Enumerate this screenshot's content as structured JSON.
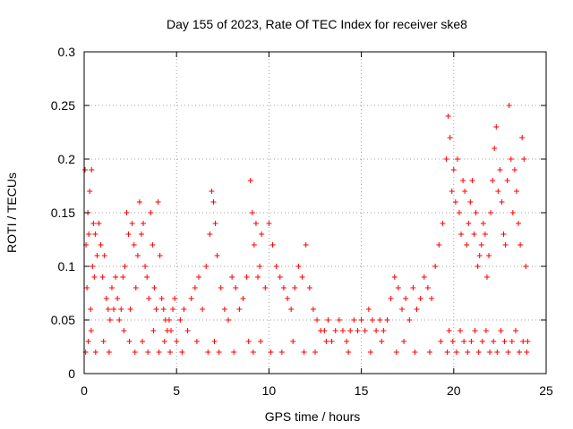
{
  "chart_data": {
    "type": "scatter",
    "title": "Day 155 of 2023, Rate Of TEC Index for receiver ske8",
    "xlabel": "GPS time / hours",
    "ylabel": "ROTI / TECUs",
    "xlim": [
      0,
      25
    ],
    "ylim": [
      0,
      0.3
    ],
    "xticks": [
      0,
      5,
      10,
      15,
      20,
      25
    ],
    "xtick_labels": [
      "0",
      "5",
      "10",
      "15",
      "20",
      "25"
    ],
    "yticks": [
      0,
      0.05,
      0.1,
      0.15,
      0.2,
      0.25,
      0.3
    ],
    "ytick_labels": [
      "0",
      "0.05",
      "0.1",
      "0.15",
      "0.2",
      "0.25",
      "0.3"
    ],
    "grid": true,
    "marker": "+",
    "series": [
      {
        "name": "ROTI",
        "color": "#ff0000",
        "x": [
          0.05,
          0.1,
          0.15,
          0.2,
          0.25,
          0.3,
          0.35,
          0.4,
          0.45,
          0.5,
          0.55,
          0.6,
          0.7,
          0.8,
          0.9,
          1.0,
          1.1,
          1.2,
          1.3,
          1.4,
          1.5,
          1.6,
          1.7,
          1.8,
          1.9,
          2.0,
          2.1,
          2.2,
          2.3,
          2.4,
          2.5,
          2.6,
          2.7,
          2.8,
          2.9,
          3.0,
          3.1,
          3.2,
          3.3,
          3.4,
          3.5,
          3.6,
          3.7,
          3.8,
          3.9,
          4.0,
          4.1,
          4.2,
          4.3,
          4.4,
          4.5,
          4.6,
          4.7,
          4.8,
          4.9,
          5.0,
          5.2,
          5.4,
          5.6,
          5.8,
          6.0,
          6.2,
          6.4,
          6.6,
          6.8,
          6.9,
          7.0,
          7.1,
          7.2,
          7.4,
          7.6,
          7.8,
          8.0,
          8.2,
          8.4,
          8.6,
          8.8,
          9.0,
          9.1,
          9.2,
          9.3,
          9.4,
          9.5,
          9.6,
          9.8,
          10.0,
          10.2,
          10.4,
          10.6,
          10.8,
          11.0,
          11.2,
          11.4,
          11.6,
          11.8,
          12.0,
          12.2,
          12.4,
          12.6,
          12.8,
          13.0,
          13.2,
          13.4,
          13.6,
          13.8,
          14.0,
          14.2,
          14.4,
          14.6,
          14.8,
          15.0,
          15.2,
          15.4,
          15.6,
          15.8,
          16.0,
          16.2,
          16.4,
          16.6,
          16.8,
          17.0,
          17.2,
          17.4,
          17.6,
          17.8,
          18.0,
          18.2,
          18.4,
          18.6,
          18.8,
          19.0,
          19.2,
          19.4,
          19.6,
          19.7,
          19.8,
          19.9,
          20.0,
          20.1,
          20.2,
          20.3,
          20.4,
          20.5,
          20.6,
          20.7,
          20.8,
          20.9,
          21.0,
          21.1,
          21.2,
          21.3,
          21.4,
          21.5,
          21.6,
          21.7,
          21.8,
          21.9,
          22.0,
          22.1,
          22.2,
          22.3,
          22.4,
          22.5,
          22.6,
          22.7,
          22.8,
          22.9,
          23.0,
          23.1,
          23.2,
          23.3,
          23.4,
          23.5,
          23.6,
          23.7,
          23.8,
          23.9,
          24.0,
          0.08,
          0.22,
          0.38,
          0.62,
          1.05,
          1.35,
          2.15,
          2.45,
          2.75,
          3.15,
          3.45,
          3.75,
          4.05,
          4.35,
          4.65,
          5.3,
          6.1,
          6.7,
          7.05,
          7.3,
          8.1,
          8.9,
          9.15,
          9.55,
          10.1,
          10.7,
          11.3,
          11.9,
          12.5,
          13.1,
          14.3,
          15.5,
          16.1,
          16.9,
          17.3,
          17.9,
          18.7,
          19.3,
          19.65,
          19.75,
          19.95,
          20.15,
          20.35,
          20.55,
          20.75,
          20.95,
          21.15,
          21.35,
          21.55,
          21.75,
          21.95,
          22.15,
          22.35,
          22.55,
          22.75,
          22.95,
          23.15,
          23.35,
          23.55,
          23.75,
          23.95
        ],
        "y": [
          0.19,
          0.12,
          0.08,
          0.15,
          0.13,
          0.17,
          0.06,
          0.19,
          0.1,
          0.14,
          0.09,
          0.13,
          0.11,
          0.14,
          0.12,
          0.09,
          0.11,
          0.07,
          0.06,
          0.05,
          0.08,
          0.06,
          0.09,
          0.07,
          0.05,
          0.06,
          0.09,
          0.1,
          0.15,
          0.13,
          0.06,
          0.14,
          0.12,
          0.08,
          0.11,
          0.16,
          0.13,
          0.14,
          0.1,
          0.09,
          0.07,
          0.15,
          0.12,
          0.08,
          0.06,
          0.16,
          0.11,
          0.07,
          0.06,
          0.05,
          0.04,
          0.05,
          0.04,
          0.06,
          0.07,
          0.03,
          0.05,
          0.06,
          0.04,
          0.07,
          0.08,
          0.09,
          0.06,
          0.1,
          0.13,
          0.17,
          0.16,
          0.14,
          0.11,
          0.08,
          0.06,
          0.05,
          0.09,
          0.08,
          0.06,
          0.07,
          0.09,
          0.18,
          0.15,
          0.12,
          0.14,
          0.09,
          0.1,
          0.13,
          0.08,
          0.14,
          0.12,
          0.1,
          0.09,
          0.08,
          0.07,
          0.06,
          0.08,
          0.1,
          0.09,
          0.12,
          0.08,
          0.06,
          0.05,
          0.04,
          0.04,
          0.05,
          0.03,
          0.04,
          0.05,
          0.04,
          0.03,
          0.04,
          0.05,
          0.04,
          0.05,
          0.04,
          0.06,
          0.05,
          0.04,
          0.05,
          0.04,
          0.05,
          0.07,
          0.09,
          0.08,
          0.06,
          0.07,
          0.05,
          0.08,
          0.06,
          0.07,
          0.09,
          0.08,
          0.07,
          0.1,
          0.12,
          0.14,
          0.2,
          0.24,
          0.22,
          0.17,
          0.19,
          0.16,
          0.2,
          0.15,
          0.13,
          0.18,
          0.17,
          0.12,
          0.14,
          0.16,
          0.18,
          0.13,
          0.15,
          0.1,
          0.11,
          0.12,
          0.14,
          0.13,
          0.09,
          0.11,
          0.15,
          0.18,
          0.21,
          0.23,
          0.17,
          0.19,
          0.16,
          0.13,
          0.12,
          0.18,
          0.25,
          0.2,
          0.15,
          0.19,
          0.17,
          0.14,
          0.12,
          0.22,
          0.2,
          0.1,
          0.03,
          0.02,
          0.03,
          0.04,
          0.02,
          0.03,
          0.02,
          0.04,
          0.03,
          0.02,
          0.03,
          0.02,
          0.04,
          0.02,
          0.03,
          0.02,
          0.02,
          0.03,
          0.02,
          0.03,
          0.02,
          0.02,
          0.03,
          0.02,
          0.03,
          0.02,
          0.02,
          0.03,
          0.02,
          0.02,
          0.03,
          0.02,
          0.02,
          0.03,
          0.02,
          0.03,
          0.02,
          0.02,
          0.03,
          0.02,
          0.04,
          0.03,
          0.02,
          0.04,
          0.03,
          0.02,
          0.03,
          0.04,
          0.02,
          0.03,
          0.04,
          0.02,
          0.03,
          0.02,
          0.04,
          0.03,
          0.02,
          0.03,
          0.04,
          0.02,
          0.03,
          0.02
        ]
      }
    ]
  }
}
